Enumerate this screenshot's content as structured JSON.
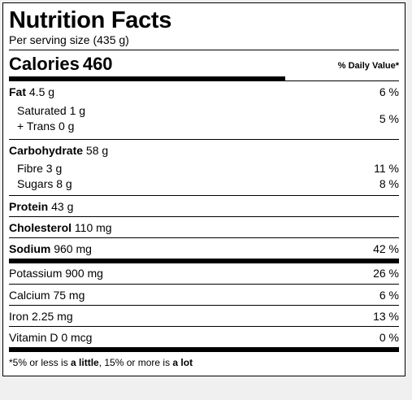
{
  "title": "Nutrition Facts",
  "serving": "Per serving size (435 g)",
  "calories": {
    "label": "Calories",
    "value": "460"
  },
  "dv_header": "% Daily Value*",
  "rows": {
    "fat": {
      "label": "Fat",
      "amount": "4.5 g",
      "dv": "6 %"
    },
    "saturated": {
      "label": "Saturated",
      "amount": "1 g"
    },
    "trans": {
      "label": "+ Trans",
      "amount": "0 g"
    },
    "sat_trans_dv": "5 %",
    "carbohydrate": {
      "label": "Carbohydrate",
      "amount": "58 g"
    },
    "fibre": {
      "label": "Fibre",
      "amount": "3 g",
      "dv": "11 %"
    },
    "sugars": {
      "label": "Sugars",
      "amount": "8 g",
      "dv": "8 %"
    },
    "protein": {
      "label": "Protein",
      "amount": "43 g"
    },
    "cholesterol": {
      "label": "Cholesterol",
      "amount": "110 mg"
    },
    "sodium": {
      "label": "Sodium",
      "amount": "960 mg",
      "dv": "42 %"
    },
    "potassium": {
      "label": "Potassium",
      "amount": "900 mg",
      "dv": "26 %"
    },
    "calcium": {
      "label": "Calcium",
      "amount": "75 mg",
      "dv": "6 %"
    },
    "iron": {
      "label": "Iron",
      "amount": "2.25 mg",
      "dv": "13 %"
    },
    "vitamin_d": {
      "label": "Vitamin D",
      "amount": "0 mcg",
      "dv": "0 %"
    }
  },
  "footnote": {
    "p1": "*5% or less is ",
    "b1": "a little",
    "p2": ", 15% or more is ",
    "b2": "a lot"
  }
}
